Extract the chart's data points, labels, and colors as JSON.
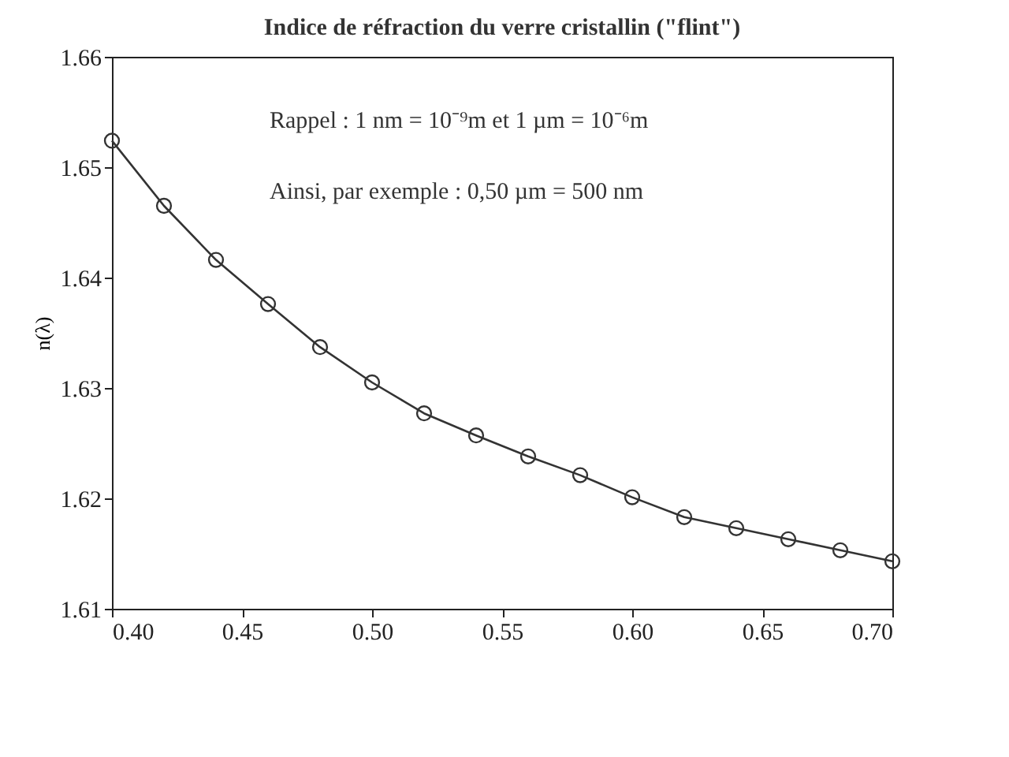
{
  "chart_data": {
    "type": "line",
    "title": "Indice de réfraction du verre cristallin (\"flint\")",
    "ylabel": "n(λ)",
    "x": [
      0.4,
      0.42,
      0.44,
      0.46,
      0.48,
      0.5,
      0.52,
      0.54,
      0.56,
      0.58,
      0.6,
      0.62,
      0.64,
      0.66,
      0.68,
      0.7
    ],
    "series": [
      {
        "color": "#333333",
        "values": [
          1.6524,
          1.6465,
          1.6416,
          1.6376,
          1.6337,
          1.6305,
          1.6277,
          1.6257,
          1.6238,
          1.6221,
          1.6201,
          1.6183,
          1.6173,
          1.6163,
          1.6153,
          1.6143
        ]
      }
    ],
    "xlim": [
      0.4,
      0.7
    ],
    "xticks": [
      {
        "value": 0.4,
        "label": "0.40"
      },
      {
        "value": 0.45,
        "label": "0.45"
      },
      {
        "value": 0.5,
        "label": "0.50"
      },
      {
        "value": 0.55,
        "label": "0.55"
      },
      {
        "value": 0.6,
        "label": "0.60"
      },
      {
        "value": 0.65,
        "label": "0.65"
      },
      {
        "value": 0.7,
        "label": "0.70"
      }
    ],
    "ylim": [
      1.61,
      1.66
    ],
    "yticks": [
      1.61,
      1.62,
      1.63,
      1.64,
      1.65,
      1.66
    ],
    "annotations": [
      "Rappel : 1 nm = 10⁻⁹m et 1 µm = 10⁻⁶m",
      "Ainsi, par exemple : 0,50 µm = 500 nm"
    ],
    "grid": false,
    "marker": "circle",
    "line_style": "solid"
  }
}
